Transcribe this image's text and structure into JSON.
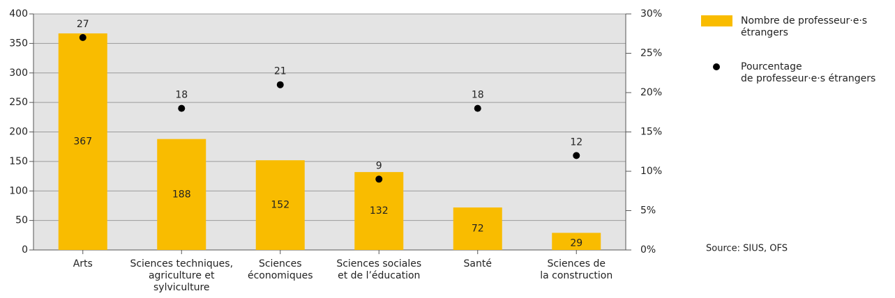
{
  "chart_data": {
    "type": "bar",
    "categories": [
      "Arts",
      "Sciences techniques,\nagriculture et\nsylviculture",
      "Sciences\néconomiques",
      "Sciences sociales\net de l’éducation",
      "Santé",
      "Sciences de\nla construction"
    ],
    "series": [
      {
        "name": "Nombre de professeur·e·s\nétrangers",
        "type": "bar",
        "color": "#f9bc00",
        "values": [
          367,
          188,
          152,
          132,
          72,
          29
        ]
      },
      {
        "name": "Pourcentage\nde professeur·e·s étrangers",
        "type": "scatter",
        "axis": "y2",
        "color": "#000000",
        "values": [
          27,
          18,
          21,
          9,
          18,
          12
        ]
      }
    ],
    "ylim": [
      0,
      400
    ],
    "yticks": [
      0,
      50,
      100,
      150,
      200,
      250,
      300,
      350,
      400
    ],
    "y2lim": [
      0,
      30
    ],
    "y2ticks": [
      {
        "value": 0,
        "label": "0%"
      },
      {
        "value": 5,
        "label": "5%"
      },
      {
        "value": 10,
        "label": "10%"
      },
      {
        "value": 15,
        "label": "15%"
      },
      {
        "value": 20,
        "label": "20%"
      },
      {
        "value": 25,
        "label": "25%"
      },
      {
        "value": 30,
        "label": "30%"
      }
    ],
    "grid": true,
    "legend": "right",
    "source": "Source: SIUS, OFS"
  }
}
